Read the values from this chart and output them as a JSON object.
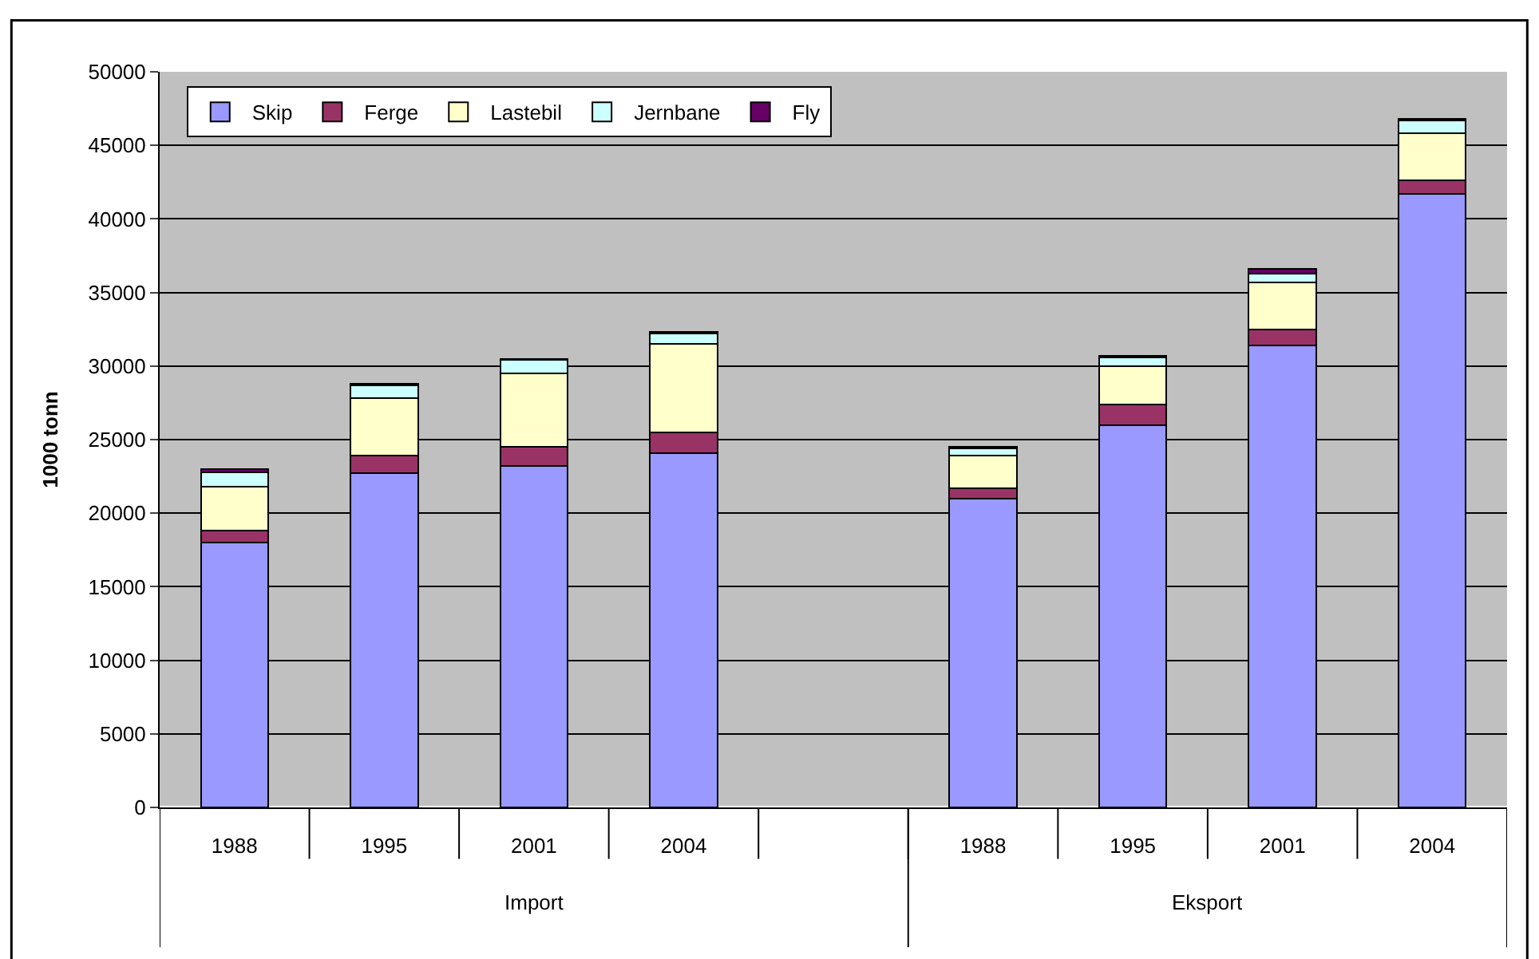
{
  "chart_data": {
    "type": "bar",
    "stacked": true,
    "ylabel": "1000 tonn",
    "categories": [
      "1988",
      "1995",
      "2001",
      "2004",
      null,
      "1988",
      "1995",
      "2001",
      "2004"
    ],
    "annotations": [
      "Import",
      "Eksport"
    ],
    "series": [
      {
        "name": "Skip",
        "color": "#9999ff",
        "values": [
          18000,
          22700,
          23200,
          24100,
          null,
          21000,
          26000,
          31400,
          41700
        ]
      },
      {
        "name": "Ferge",
        "color": "#993366",
        "values": [
          800,
          1200,
          1300,
          1400,
          null,
          700,
          1400,
          1100,
          900
        ]
      },
      {
        "name": "Lastebil",
        "color": "#ffffcc",
        "values": [
          3000,
          3900,
          5000,
          6000,
          null,
          2200,
          2600,
          3200,
          3200
        ]
      },
      {
        "name": "Jernbane",
        "color": "#ccffff",
        "values": [
          1000,
          900,
          900,
          700,
          null,
          500,
          600,
          600,
          900
        ]
      },
      {
        "name": "Fly",
        "color": "#660066",
        "values": [
          200,
          100,
          100,
          100,
          null,
          100,
          100,
          300,
          100
        ]
      }
    ],
    "ylim": [
      0,
      50000
    ],
    "yticks": [
      0,
      5000,
      10000,
      15000,
      20000,
      25000,
      30000,
      35000,
      40000,
      45000,
      50000
    ],
    "grid": "y",
    "legend": "top left"
  }
}
